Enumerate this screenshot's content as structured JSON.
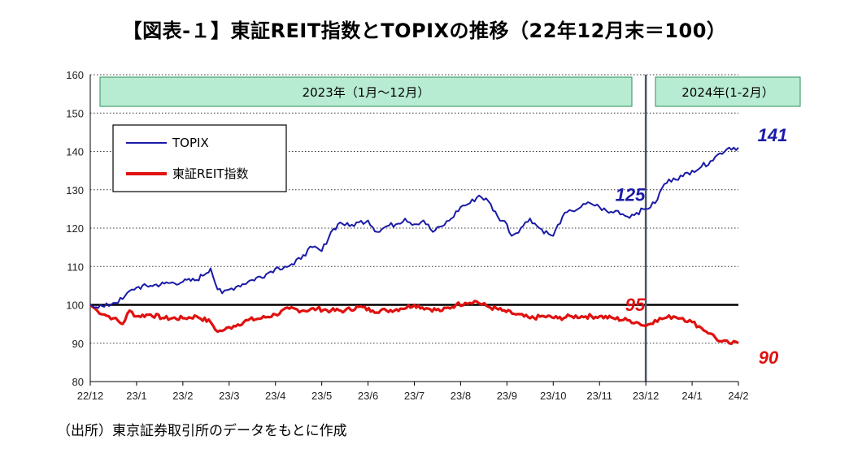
{
  "title": "【図表-１】東証REIT指数とTOPIXの推移（22年12月末＝100）",
  "source": "（出所）東京証券取引所のデータをもとに作成",
  "colors": {
    "topix": "#1a1aa8",
    "reit": "#e0110f",
    "band": "#b8ecd2",
    "band_border": "#2f8f5b",
    "baseline": "#000000",
    "divider": "#4a5563"
  },
  "bands": [
    "2023年（1月～12月）",
    "2024年(1-2月）"
  ],
  "chart_data": {
    "type": "line",
    "title": "【図表-１】東証REIT指数とTOPIXの推移（22年12月末＝100）",
    "xlabel": "",
    "ylabel": "",
    "x_ticks": [
      "22/12",
      "23/1",
      "23/2",
      "23/3",
      "23/4",
      "23/5",
      "23/6",
      "23/7",
      "23/8",
      "23/9",
      "23/10",
      "23/11",
      "23/12",
      "24/1",
      "24/2"
    ],
    "y_ticks": [
      "160",
      "150",
      "140",
      "130",
      "120",
      "110",
      "100",
      "90",
      "80"
    ],
    "ylim": [
      80,
      160
    ],
    "xlim": [
      0,
      14
    ],
    "grid": "horizontal dotted",
    "baseline": 100,
    "legend_position": "top-left",
    "series": [
      {
        "name": "TOPIX",
        "color": "#1a1aa8",
        "x": [
          0,
          0.3,
          0.5,
          0.7,
          0.9,
          1.0,
          1.3,
          1.6,
          2.0,
          2.3,
          2.6,
          2.75,
          2.85,
          3.0,
          3.2,
          3.5,
          3.8,
          4.0,
          4.2,
          4.4,
          4.6,
          4.8,
          5.0,
          5.2,
          5.4,
          5.6,
          5.8,
          6.0,
          6.2,
          6.4,
          6.6,
          6.8,
          7.0,
          7.2,
          7.4,
          7.6,
          7.8,
          8.0,
          8.2,
          8.4,
          8.6,
          8.8,
          9.0,
          9.1,
          9.3,
          9.5,
          9.7,
          9.9,
          10.0,
          10.2,
          10.4,
          10.6,
          10.8,
          11.0,
          11.2,
          11.4,
          11.6,
          11.8,
          12.0,
          12.2,
          12.4,
          12.6,
          12.8,
          13.0,
          13.2,
          13.4,
          13.6,
          13.8,
          14.0
        ],
        "values": [
          100,
          99.5,
          100.5,
          101.5,
          104,
          104.5,
          105,
          105.5,
          106,
          106.5,
          109.5,
          104,
          103,
          104,
          105,
          106.5,
          108,
          109.5,
          110,
          110.5,
          113,
          115,
          114,
          119,
          121.5,
          120.5,
          121.5,
          122,
          119,
          120.5,
          121,
          122.5,
          121,
          122,
          119,
          120.5,
          122.5,
          125.5,
          126.5,
          128.5,
          127,
          123,
          121,
          118,
          120,
          122.5,
          120,
          118.5,
          118,
          123,
          124.5,
          125.5,
          126.5,
          125.5,
          124,
          124.5,
          123,
          124,
          125,
          126.5,
          131.5,
          133,
          133.5,
          135,
          136,
          137.5,
          139.5,
          141,
          141
        ]
      },
      {
        "name": "東証REIT指数",
        "color": "#e0110f",
        "x": [
          0,
          0.15,
          0.3,
          0.5,
          0.7,
          0.85,
          1.0,
          1.3,
          1.6,
          2.0,
          2.3,
          2.6,
          2.75,
          2.9,
          3.1,
          3.4,
          3.7,
          4.0,
          4.3,
          4.6,
          4.9,
          5.2,
          5.5,
          5.8,
          6.1,
          6.4,
          6.7,
          7.0,
          7.3,
          7.6,
          7.9,
          8.1,
          8.3,
          8.6,
          8.9,
          9.2,
          9.5,
          9.8,
          10.1,
          10.4,
          10.7,
          11.0,
          11.3,
          11.6,
          11.8,
          12.0,
          12.2,
          12.4,
          12.6,
          12.8,
          13.0,
          13.2,
          13.4,
          13.6,
          13.8,
          14.0
        ],
        "values": [
          100,
          98.5,
          97.5,
          96.5,
          95,
          98.5,
          97,
          97.5,
          96.5,
          96.5,
          97,
          95.5,
          93,
          93.5,
          94.5,
          96,
          96.5,
          97.5,
          99,
          98.5,
          99,
          98.5,
          98.5,
          99.5,
          98.5,
          98.5,
          99,
          100,
          99,
          98.5,
          100,
          100.5,
          101,
          99.5,
          98.5,
          97.5,
          96.5,
          97,
          96.5,
          97,
          97,
          97,
          96.5,
          96,
          95.5,
          94.5,
          96,
          96.5,
          97,
          96.5,
          95.5,
          94,
          92.5,
          90.5,
          90,
          90
        ]
      }
    ],
    "annotations": [
      {
        "text": "141",
        "series": "TOPIX"
      },
      {
        "text": "125",
        "series": "TOPIX"
      },
      {
        "text": "95",
        "series": "東証REIT指数"
      },
      {
        "text": "90",
        "series": "東証REIT指数"
      }
    ]
  }
}
